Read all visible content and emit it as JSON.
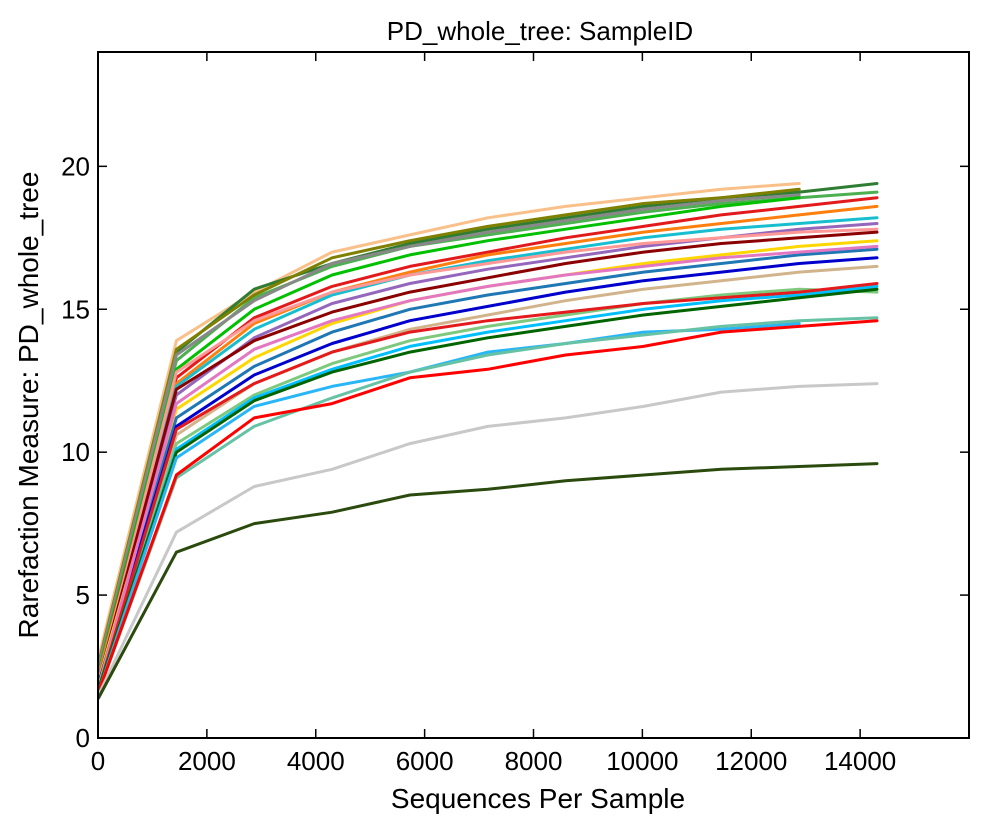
{
  "chart_data": {
    "type": "line",
    "title": "PD_whole_tree: SampleID",
    "xlabel": "Sequences Per Sample",
    "ylabel": "Rarefaction Measure: PD_whole_tree",
    "xlim": [
      0,
      16000
    ],
    "ylim": [
      0,
      24
    ],
    "xticks": [
      0,
      2000,
      4000,
      6000,
      8000,
      10000,
      12000,
      14000
    ],
    "xtick_labels": [
      "0",
      "2000",
      "4000",
      "6000",
      "8000",
      "10000",
      "12000",
      "14000"
    ],
    "yticks": [
      0,
      5,
      10,
      15,
      20
    ],
    "ytick_labels": [
      "0",
      "5",
      "10",
      "15",
      "20"
    ],
    "grid": false,
    "legend": "none",
    "x": [
      10,
      1440,
      2870,
      4300,
      5730,
      7160,
      8590,
      10020,
      11450,
      12880,
      14310
    ],
    "series": [
      {
        "color": "#f9c08a",
        "values": [
          2.8,
          13.9,
          15.6,
          17.0,
          17.6,
          18.2,
          18.6,
          18.9,
          19.2,
          19.4,
          null
        ]
      },
      {
        "color": "#2e7d32",
        "values": [
          2.5,
          13.5,
          15.7,
          16.6,
          17.3,
          17.8,
          18.2,
          18.6,
          18.9,
          19.1,
          19.4
        ]
      },
      {
        "color": "#4caf50",
        "values": [
          2.4,
          13.2,
          15.4,
          16.5,
          17.2,
          17.6,
          18.0,
          18.4,
          18.7,
          18.9,
          19.1
        ]
      },
      {
        "color": "#808000",
        "values": [
          2.6,
          13.6,
          15.5,
          16.8,
          17.4,
          17.9,
          18.3,
          18.7,
          18.9,
          19.2,
          null
        ]
      },
      {
        "color": "#888888",
        "values": [
          2.5,
          13.4,
          15.3,
          16.6,
          17.2,
          17.7,
          18.1,
          18.5,
          18.8,
          19.0,
          null
        ]
      },
      {
        "color": "#00c000",
        "values": [
          2.3,
          12.9,
          15.0,
          16.2,
          16.9,
          17.4,
          17.8,
          18.2,
          18.6,
          18.9,
          null
        ]
      },
      {
        "color": "#e31a1c",
        "values": [
          2.2,
          12.6,
          14.7,
          15.8,
          16.5,
          17.0,
          17.5,
          17.9,
          18.3,
          18.6,
          18.9
        ]
      },
      {
        "color": "#ff7f0e",
        "values": [
          2.2,
          12.4,
          14.5,
          15.6,
          16.3,
          16.9,
          17.3,
          17.7,
          18.0,
          18.3,
          18.6
        ]
      },
      {
        "color": "#17becf",
        "values": [
          2.1,
          12.3,
          14.3,
          15.5,
          16.2,
          16.7,
          17.1,
          17.5,
          17.8,
          18.0,
          18.2
        ]
      },
      {
        "color": "#9467bd",
        "values": [
          2.1,
          12.0,
          14.0,
          15.2,
          15.9,
          16.4,
          16.8,
          17.2,
          17.5,
          17.8,
          18.0
        ]
      },
      {
        "color": "#ff9896",
        "values": [
          2.0,
          12.8,
          14.6,
          15.6,
          16.2,
          16.6,
          17.0,
          17.3,
          17.5,
          17.7,
          17.8
        ]
      },
      {
        "color": "#8b0000",
        "values": [
          2.0,
          12.2,
          13.9,
          14.9,
          15.6,
          16.1,
          16.6,
          17.0,
          17.3,
          17.5,
          17.7
        ]
      },
      {
        "color": "#ffd700",
        "values": [
          2.0,
          11.5,
          13.3,
          14.5,
          15.3,
          15.8,
          16.2,
          16.6,
          16.9,
          17.2,
          17.4
        ]
      },
      {
        "color": "#1f77b4",
        "values": [
          1.9,
          11.2,
          13.0,
          14.2,
          15.0,
          15.5,
          15.9,
          16.3,
          16.6,
          16.9,
          17.1
        ]
      },
      {
        "color": "#0000cd",
        "values": [
          1.9,
          10.9,
          12.7,
          13.8,
          14.6,
          15.1,
          15.6,
          16.0,
          16.3,
          16.6,
          16.8
        ]
      },
      {
        "color": "#e377c2",
        "values": [
          1.8,
          11.7,
          13.6,
          14.6,
          15.3,
          15.8,
          16.2,
          16.5,
          16.8,
          17.0,
          17.2
        ]
      },
      {
        "color": "#d2b48c",
        "values": [
          1.8,
          10.6,
          12.4,
          13.5,
          14.3,
          14.8,
          15.3,
          15.7,
          16.0,
          16.3,
          16.5
        ]
      },
      {
        "color": "#7fc97f",
        "values": [
          1.8,
          10.3,
          12.0,
          13.1,
          13.9,
          14.4,
          14.8,
          15.2,
          15.5,
          15.7,
          15.6
        ]
      },
      {
        "color": "#00bfff",
        "values": [
          1.7,
          10.1,
          11.9,
          12.9,
          13.7,
          14.2,
          14.6,
          15.0,
          15.3,
          15.5,
          15.8
        ]
      },
      {
        "color": "#e41a1c",
        "values": [
          1.7,
          10.8,
          12.4,
          13.5,
          14.2,
          14.6,
          14.9,
          15.2,
          15.4,
          15.6,
          15.9
        ]
      },
      {
        "color": "#006400",
        "values": [
          1.7,
          10.0,
          11.8,
          12.8,
          13.5,
          14.0,
          14.4,
          14.8,
          15.1,
          15.4,
          15.7
        ]
      },
      {
        "color": "#29b6f6",
        "values": [
          1.6,
          9.8,
          11.6,
          12.3,
          12.8,
          13.5,
          13.8,
          14.2,
          14.3,
          14.5,
          null
        ]
      },
      {
        "color": "#66c2a5",
        "values": [
          1.6,
          9.1,
          10.9,
          11.9,
          12.8,
          13.4,
          13.8,
          14.1,
          14.4,
          14.6,
          14.7
        ]
      },
      {
        "color": "#ff0000",
        "values": [
          1.6,
          9.2,
          11.2,
          11.7,
          12.6,
          12.9,
          13.4,
          13.7,
          14.2,
          14.4,
          14.6
        ]
      },
      {
        "color": "#c8c8c8",
        "values": [
          1.5,
          7.2,
          8.8,
          9.4,
          10.3,
          10.9,
          11.2,
          11.6,
          12.1,
          12.3,
          12.4
        ]
      },
      {
        "color": "#2b4a0d",
        "values": [
          1.4,
          6.5,
          7.5,
          7.9,
          8.5,
          8.7,
          9.0,
          9.2,
          9.4,
          9.5,
          9.6
        ]
      }
    ]
  }
}
